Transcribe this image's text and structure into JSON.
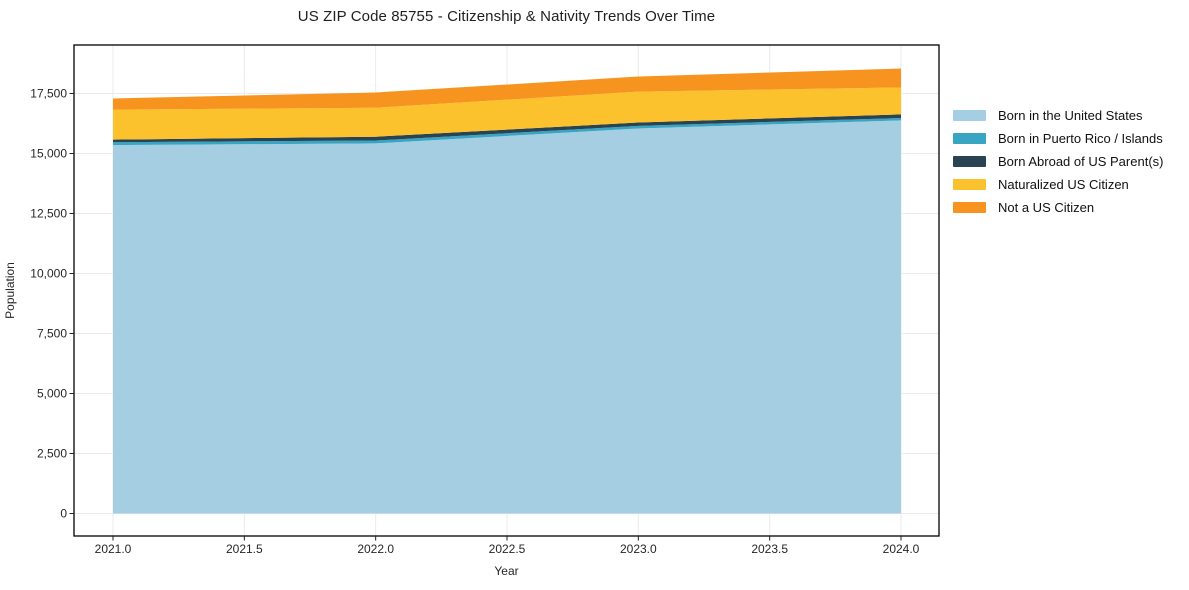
{
  "chart_data": {
    "type": "area",
    "stacked": true,
    "title": "US ZIP Code 85755 - Citizenship & Nativity Trends Over Time",
    "xlabel": "Year",
    "ylabel": "Population",
    "x": [
      2021,
      2022,
      2023,
      2024
    ],
    "series": [
      {
        "name": "Born in the United States",
        "color": "#a6cee3",
        "values": [
          15350,
          15420,
          16040,
          16380
        ]
      },
      {
        "name": "Born in Puerto Rico / Islands",
        "color": "#38a6c2",
        "values": [
          120,
          120,
          110,
          100
        ]
      },
      {
        "name": "Born Abroad of US Parent(s)",
        "color": "#2a4353",
        "values": [
          110,
          160,
          140,
          150
        ]
      },
      {
        "name": "Naturalized US Citizen",
        "color": "#fcc22d",
        "values": [
          1250,
          1210,
          1290,
          1120
        ]
      },
      {
        "name": "Not a US Citizen",
        "color": "#f7941f",
        "values": [
          460,
          630,
          630,
          790
        ]
      }
    ],
    "stack_totals": [
      17290,
      17540,
      18210,
      18540
    ],
    "xticks": [
      2021.0,
      2021.5,
      2022.0,
      2022.5,
      2023.0,
      2023.5,
      2024.0
    ],
    "xtick_labels": [
      "2021.0",
      "2021.5",
      "2022.0",
      "2022.5",
      "2023.0",
      "2023.5",
      "2024.0"
    ],
    "yticks": [
      0,
      2500,
      5000,
      7500,
      10000,
      12500,
      15000,
      17500
    ],
    "ytick_labels": [
      "0",
      "2,500",
      "5,000",
      "7,500",
      "10,000",
      "12,500",
      "15,000",
      "17,500"
    ],
    "xlim": [
      2020.85,
      2024.15
    ],
    "ylim": [
      -1000,
      19520
    ],
    "grid": true,
    "legend_position": "right"
  },
  "colors": {
    "grid": "#ebebeb",
    "spine": "#000000",
    "tick": "#222222",
    "title_text": "#1f1f1f"
  }
}
